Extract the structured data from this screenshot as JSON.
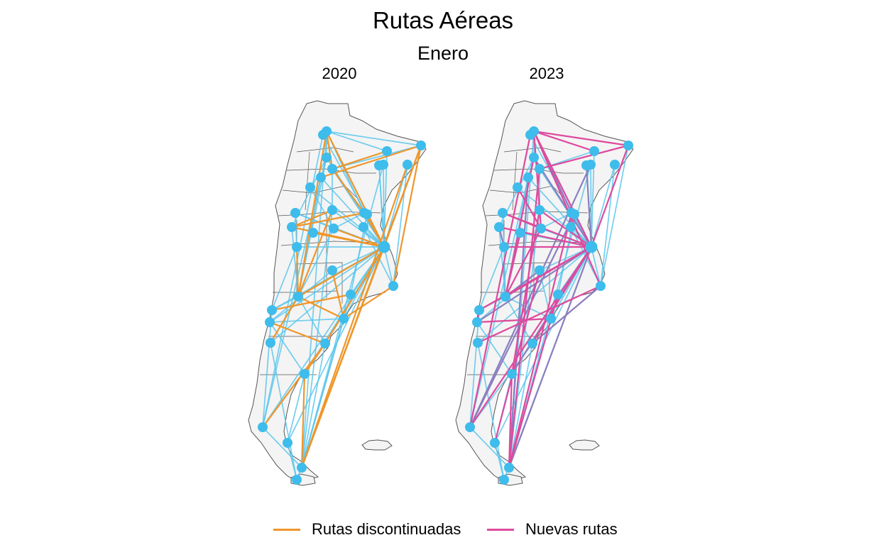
{
  "title": "Rutas Aéreas",
  "subtitle": "Enero",
  "facets": [
    "2020",
    "2023"
  ],
  "legend": [
    {
      "label": "Rutas discontinuadas",
      "color": "#f0962a"
    },
    {
      "label": "Nuevas rutas",
      "color": "#de4a9e"
    }
  ],
  "colors": {
    "route": "#5bc6ec",
    "airport": "#3ebceb",
    "discontinued": "#f0962a",
    "new": "#de4a9e",
    "new_alt": "#8a7fc0",
    "land": "#f4f4f4",
    "border": "#555555"
  }
}
